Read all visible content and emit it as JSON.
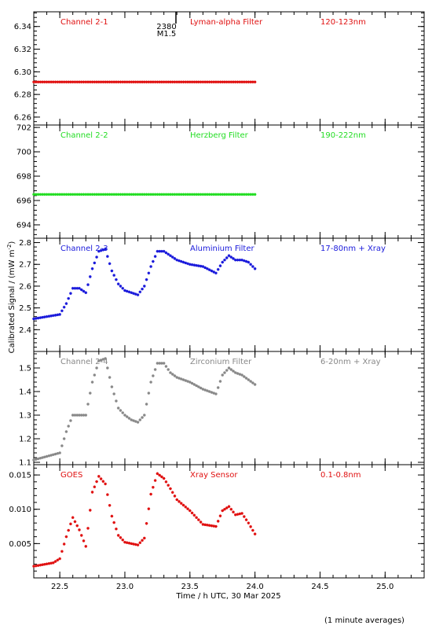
{
  "figure": {
    "ylabel": "Calibrated Signal / (mW m",
    "ylabel_sup": "-2",
    "ylabel_close": ")",
    "xlabel": "Time / h UTC, 30 Mar 2025",
    "footnote": "(1 minute averages)",
    "event": {
      "number": "2380",
      "class": "M1.5",
      "time": 23.32
    },
    "x_ticks": [
      "22.5",
      "23.0",
      "23.5",
      "24.0",
      "24.5",
      "25.0"
    ]
  },
  "chart_data": [
    {
      "type": "scatter",
      "name": "Channel 2-1",
      "filter": "Lyman-alpha Filter",
      "band": "120-123nm",
      "color": "#e01010",
      "xlim": [
        22.3,
        25.3
      ],
      "ylim": [
        6.253,
        6.353
      ],
      "yticks": [
        "6.26",
        "6.28",
        "6.30",
        "6.32",
        "6.34"
      ],
      "x": [
        22.3,
        24.0
      ],
      "y": [
        6.291,
        6.291
      ]
    },
    {
      "type": "scatter",
      "name": "Channel 2-2",
      "filter": "Herzberg Filter",
      "band": "190-222nm",
      "color": "#22dd22",
      "xlim": [
        22.3,
        25.3
      ],
      "ylim": [
        692.9,
        702.2
      ],
      "yticks": [
        "694",
        "696",
        "698",
        "700",
        "702"
      ],
      "x": [
        22.3,
        24.0
      ],
      "y": [
        696.5,
        696.5
      ]
    },
    {
      "type": "scatter",
      "name": "Channel 2-3",
      "filter": "Aluminium Filter",
      "band": "17-80nm + Xray",
      "color": "#1a1adb",
      "xlim": [
        22.3,
        25.3
      ],
      "ylim": [
        2.3,
        2.82
      ],
      "yticks": [
        "2.4",
        "2.5",
        "2.6",
        "2.7",
        "2.8"
      ],
      "x": [
        22.3,
        22.5,
        22.55,
        22.6,
        22.65,
        22.7,
        22.75,
        22.8,
        22.85,
        22.9,
        22.95,
        23.0,
        23.05,
        23.1,
        23.15,
        23.2,
        23.25,
        23.3,
        23.35,
        23.4,
        23.5,
        23.6,
        23.7,
        23.75,
        23.8,
        23.85,
        23.9,
        23.95,
        24.0
      ],
      "y": [
        2.45,
        2.47,
        2.52,
        2.59,
        2.59,
        2.57,
        2.68,
        2.76,
        2.77,
        2.67,
        2.61,
        2.58,
        2.57,
        2.56,
        2.6,
        2.69,
        2.76,
        2.76,
        2.74,
        2.72,
        2.7,
        2.69,
        2.66,
        2.71,
        2.74,
        2.72,
        2.72,
        2.71,
        2.68
      ]
    },
    {
      "type": "scatter",
      "name": "Channel 2-4",
      "filter": "Zirconium Filter",
      "band": "6-20nm + Xray",
      "color": "#888888",
      "xlim": [
        22.3,
        25.3
      ],
      "ylim": [
        1.09,
        1.57
      ],
      "yticks": [
        "1.1",
        "1.2",
        "1.3",
        "1.4",
        "1.5"
      ],
      "x": [
        22.3,
        22.5,
        22.55,
        22.6,
        22.65,
        22.7,
        22.75,
        22.8,
        22.85,
        22.9,
        22.95,
        23.0,
        23.05,
        23.1,
        23.15,
        23.2,
        23.25,
        23.3,
        23.35,
        23.4,
        23.5,
        23.6,
        23.7,
        23.75,
        23.8,
        23.85,
        23.9,
        23.95,
        24.0
      ],
      "y": [
        1.11,
        1.14,
        1.23,
        1.3,
        1.3,
        1.3,
        1.44,
        1.53,
        1.54,
        1.42,
        1.33,
        1.3,
        1.28,
        1.27,
        1.3,
        1.44,
        1.52,
        1.52,
        1.48,
        1.46,
        1.44,
        1.41,
        1.39,
        1.47,
        1.5,
        1.48,
        1.47,
        1.45,
        1.43
      ]
    },
    {
      "type": "scatter",
      "name": "GOES",
      "filter": "Xray Sensor",
      "band": "0.1-0.8nm",
      "color": "#e01010",
      "xlim": [
        22.3,
        25.3
      ],
      "ylim": [
        0.0,
        0.0165
      ],
      "yticks": [
        "0.005",
        "0.010",
        "0.015"
      ],
      "x": [
        22.3,
        22.45,
        22.5,
        22.55,
        22.6,
        22.65,
        22.7,
        22.75,
        22.8,
        22.85,
        22.9,
        22.95,
        23.0,
        23.05,
        23.1,
        23.15,
        23.2,
        23.25,
        23.3,
        23.35,
        23.4,
        23.5,
        23.6,
        23.7,
        23.75,
        23.8,
        23.85,
        23.9,
        23.95,
        24.0
      ],
      "y": [
        0.0017,
        0.0022,
        0.0028,
        0.006,
        0.0088,
        0.007,
        0.0046,
        0.0125,
        0.0148,
        0.0137,
        0.009,
        0.0062,
        0.0052,
        0.005,
        0.0048,
        0.0058,
        0.0122,
        0.0152,
        0.0145,
        0.013,
        0.0114,
        0.0098,
        0.0078,
        0.0075,
        0.0098,
        0.0104,
        0.0092,
        0.0094,
        0.008,
        0.0064
      ]
    }
  ]
}
